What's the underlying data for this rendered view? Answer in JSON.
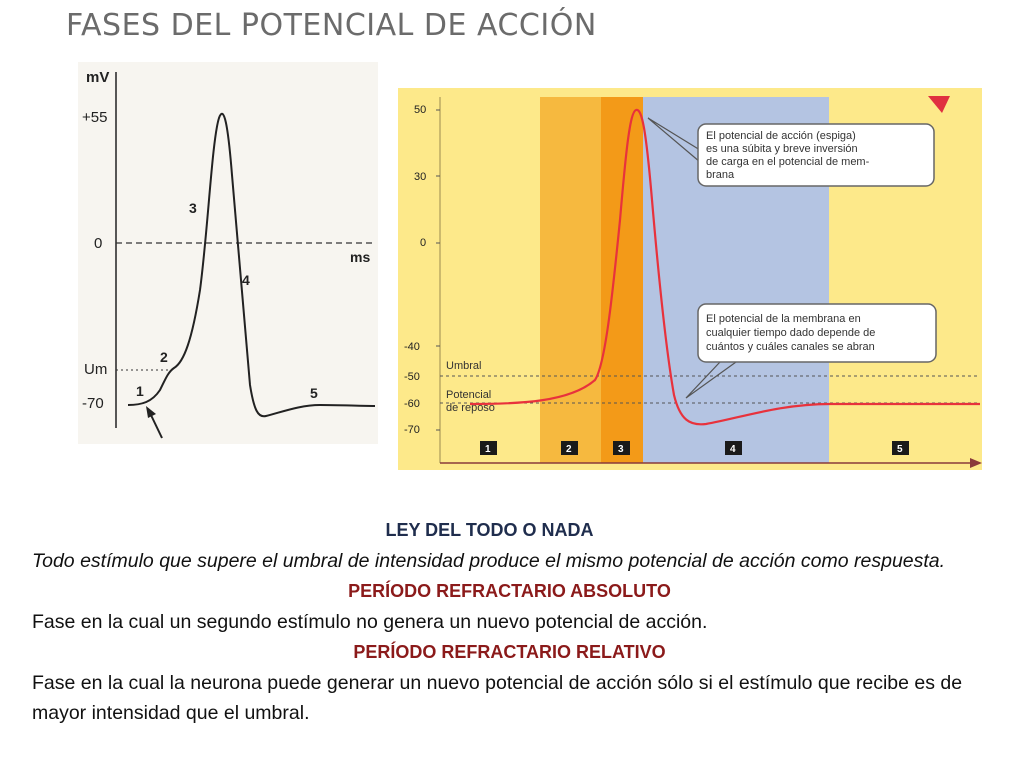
{
  "title": "FASES DEL POTENCIAL DE ACCIÓN",
  "left_diagram": {
    "y_unit": "mV",
    "x_unit": "ms",
    "y_labels": [
      "+55",
      "0",
      "Um",
      "-70"
    ],
    "phase_numbers": [
      "1",
      "2",
      "3",
      "4",
      "5"
    ]
  },
  "right_diagram": {
    "y_ticks": [
      "50",
      "30",
      "0",
      "-40",
      "-50",
      "-60",
      "-70"
    ],
    "umbral_label": "Umbral",
    "reposo_label_1": "Potencial",
    "reposo_label_2": "de reposo",
    "callout_top": [
      "El potencial de acción (espiga)",
      "es una súbita y breve inversión",
      "de carga en el potencial de mem-",
      "brana"
    ],
    "callout_bottom": [
      "El potencial de la membrana en",
      "cualquier tiempo dado depende de",
      "cuántos y cuáles canales se abran"
    ],
    "phase_boxes": [
      "1",
      "2",
      "3",
      "4",
      "5"
    ],
    "colors": {
      "yellow": "#fde98a",
      "orange_light": "#f6b93f",
      "orange": "#f39a18",
      "blue": "#b4c4e2",
      "curve": "#e8323c"
    }
  },
  "text": {
    "law_heading": "LEY DEL TODO O NADA",
    "law_body": " Todo estímulo que supere el umbral de intensidad produce el mismo  potencial de acción como respuesta.",
    "absolute_heading": "PERÍODO REFRACTARIO  ABSOLUTO",
    "absolute_body": "Fase en la cual un segundo estímulo no genera un  nuevo potencial de acción.",
    "relative_heading": "PERÍODO REFRACTARIO RELATIVO",
    "relative_body": " Fase en la cual la neurona puede generar un nuevo  potencial de acción sólo si el estímulo que recibe es de mayor intensidad que el umbral."
  }
}
